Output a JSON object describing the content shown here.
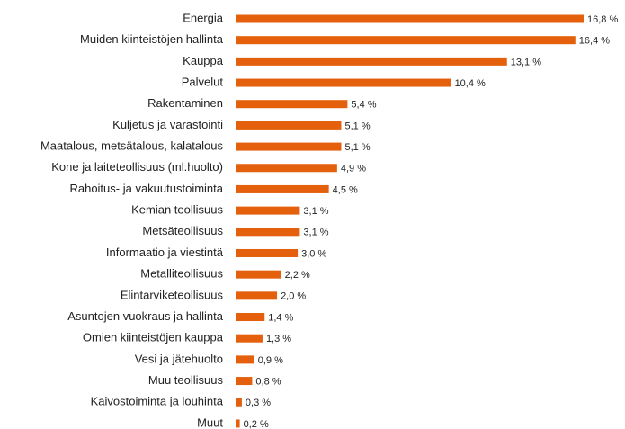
{
  "chart_data": {
    "type": "bar",
    "orientation": "horizontal",
    "color": "#e5600d",
    "categories": [
      "Energia",
      "Muiden kiinteistöjen hallinta",
      "Kauppa",
      "Palvelut",
      "Rakentaminen",
      "Kuljetus ja varastointi",
      "Maatalous, metsätalous, kalatalous",
      "Kone ja laiteteollisuus (ml.huolto)",
      "Rahoitus- ja vakuutustoiminta",
      "Kemian teollisuus",
      "Metsäteollisuus",
      "Informaatio ja viestintä",
      "Metalliteollisuus",
      "Elintarviketeollisuus",
      "Asuntojen vuokraus ja hallinta",
      "Omien kiinteistöjen kauppa",
      "Vesi ja jätehuolto",
      "Muu teollisuus",
      "Kaivostoiminta ja louhinta",
      "Muut"
    ],
    "values": [
      16.8,
      16.4,
      13.1,
      10.4,
      5.4,
      5.1,
      5.1,
      4.9,
      4.5,
      3.1,
      3.1,
      3.0,
      2.2,
      2.0,
      1.4,
      1.3,
      0.9,
      0.8,
      0.3,
      0.2
    ],
    "value_labels": [
      "16,8 %",
      "16,4 %",
      "13,1 %",
      "10,4 %",
      "5,4 %",
      "5,1 %",
      "5,1 %",
      "4,9 %",
      "4,5 %",
      "3,1 %",
      "3,1 %",
      "3,0 %",
      "2,2 %",
      "2,0 %",
      "1,4 %",
      "1,3 %",
      "0,9 %",
      "0,8 %",
      "0,3 %",
      "0,2 %"
    ]
  }
}
